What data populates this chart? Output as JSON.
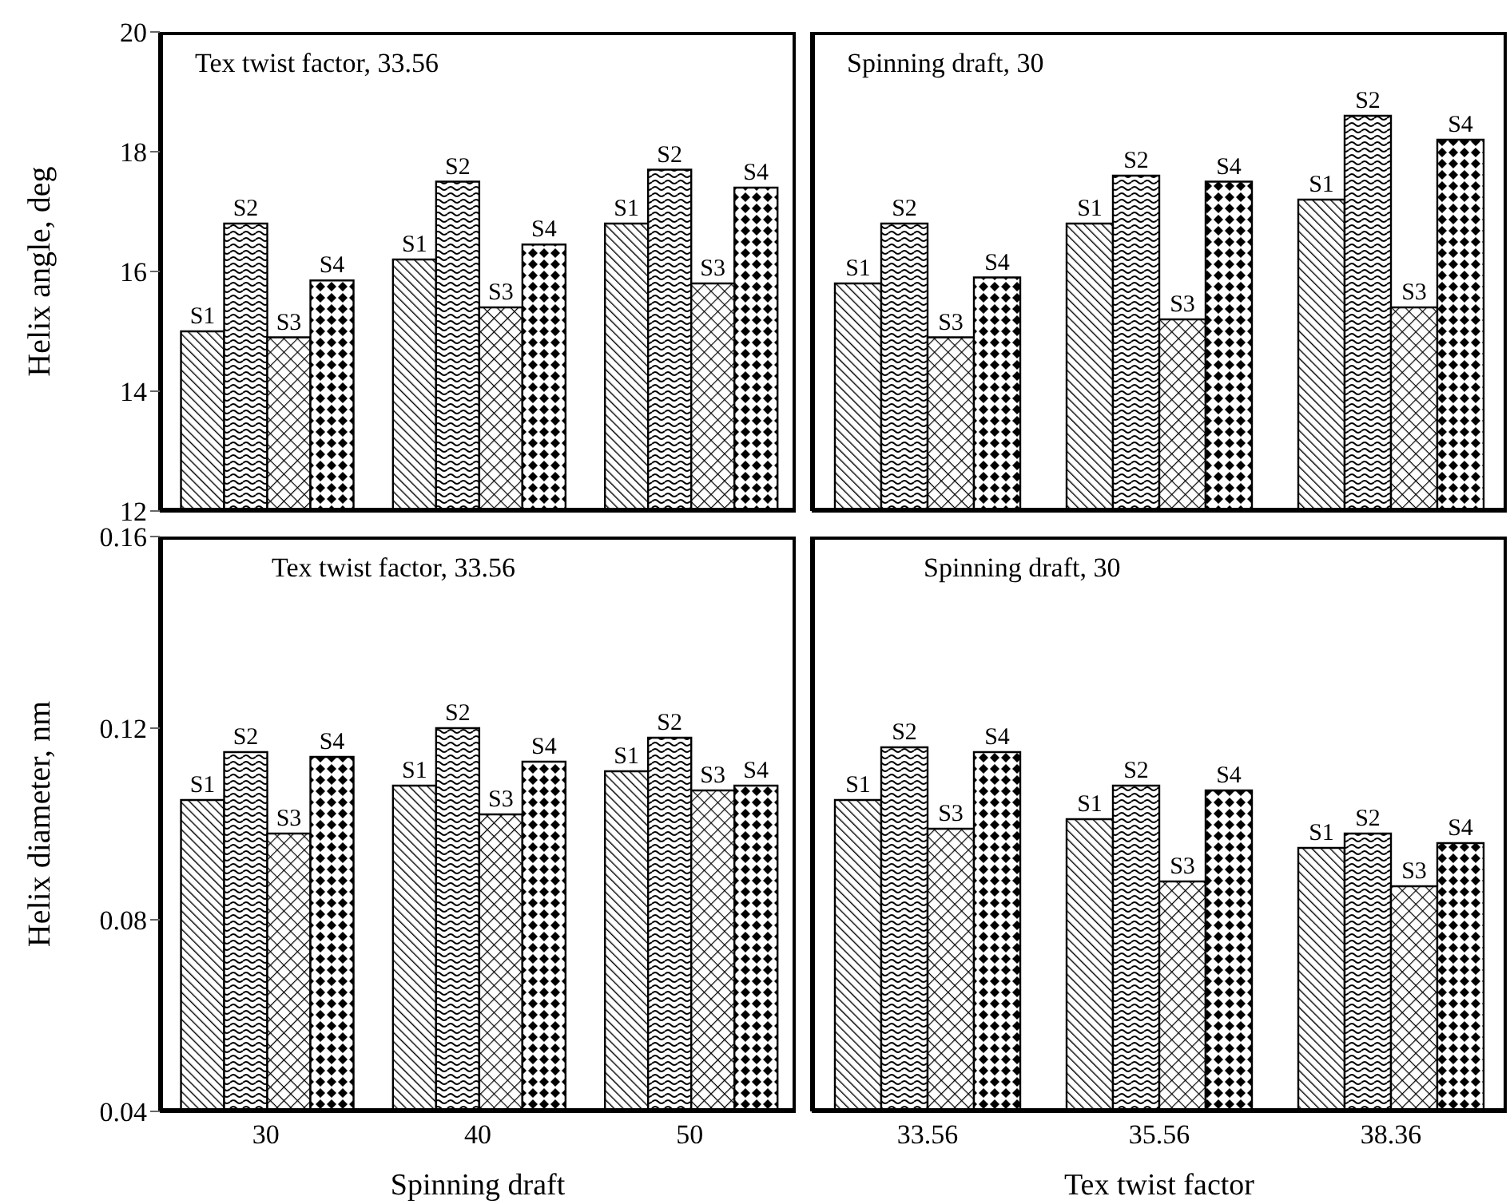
{
  "chart_data": [
    {
      "type": "bar",
      "ylabel": "Helix angle, deg",
      "categories": [
        "30",
        "40",
        "50"
      ],
      "ylim": [
        12,
        20
      ],
      "yticks": [
        12,
        14,
        16,
        18,
        20
      ],
      "tick_labels": "y",
      "annotations": [
        "Tex twist factor, 33.56"
      ],
      "series": [
        {
          "name": "S1",
          "color": "#000000",
          "values": [
            15.0,
            16.2,
            16.8
          ]
        },
        {
          "name": "S2",
          "color": "#000000",
          "values": [
            16.8,
            17.5,
            17.7
          ]
        },
        {
          "name": "S3",
          "color": "#000000",
          "values": [
            14.9,
            15.4,
            15.8
          ]
        },
        {
          "name": "S4",
          "color": "#000000",
          "values": [
            15.85,
            16.45,
            17.4
          ]
        }
      ]
    },
    {
      "type": "bar",
      "categories": [
        "33.56",
        "35.56",
        "38.36"
      ],
      "ylim": [
        12,
        20
      ],
      "yticks": [
        12,
        14,
        16,
        18,
        20
      ],
      "tick_labels": false,
      "annotations": [
        "Spinning draft, 30"
      ],
      "series": [
        {
          "name": "S1",
          "color": "#000000",
          "values": [
            15.8,
            16.8,
            17.2
          ]
        },
        {
          "name": "S2",
          "color": "#000000",
          "values": [
            16.8,
            17.6,
            18.6
          ]
        },
        {
          "name": "S3",
          "color": "#000000",
          "values": [
            14.9,
            15.2,
            15.4
          ]
        },
        {
          "name": "S4",
          "color": "#000000",
          "values": [
            15.9,
            17.5,
            18.2
          ]
        }
      ]
    },
    {
      "type": "bar",
      "xlabel": "Spinning draft",
      "ylabel": "Helix diameter, nm",
      "categories": [
        "30",
        "40",
        "50"
      ],
      "ylim": [
        0.04,
        0.16
      ],
      "yticks": [
        0.04,
        0.08,
        0.12,
        0.16
      ],
      "annotations": [
        "Tex twist factor, 33.56"
      ],
      "series": [
        {
          "name": "S1",
          "color": "#000000",
          "values": [
            0.105,
            0.108,
            0.111
          ]
        },
        {
          "name": "S2",
          "color": "#000000",
          "values": [
            0.115,
            0.12,
            0.118
          ]
        },
        {
          "name": "S3",
          "color": "#000000",
          "values": [
            0.098,
            0.102,
            0.107
          ]
        },
        {
          "name": "S4",
          "color": "#000000",
          "values": [
            0.114,
            0.113,
            0.108
          ]
        }
      ]
    },
    {
      "type": "bar",
      "xlabel": "Tex twist factor",
      "categories": [
        "33.56",
        "35.56",
        "38.36"
      ],
      "ylim": [
        0.04,
        0.16
      ],
      "yticks": [
        0.04,
        0.08,
        0.12,
        0.16
      ],
      "tick_labels": "x",
      "annotations": [
        "Spinning draft, 30"
      ],
      "series": [
        {
          "name": "S1",
          "color": "#000000",
          "values": [
            0.105,
            0.101,
            0.095
          ]
        },
        {
          "name": "S2",
          "color": "#000000",
          "values": [
            0.116,
            0.108,
            0.098
          ]
        },
        {
          "name": "S3",
          "color": "#000000",
          "values": [
            0.099,
            0.088,
            0.087
          ]
        },
        {
          "name": "S4",
          "color": "#000000",
          "values": [
            0.115,
            0.107,
            0.096
          ]
        }
      ]
    }
  ]
}
